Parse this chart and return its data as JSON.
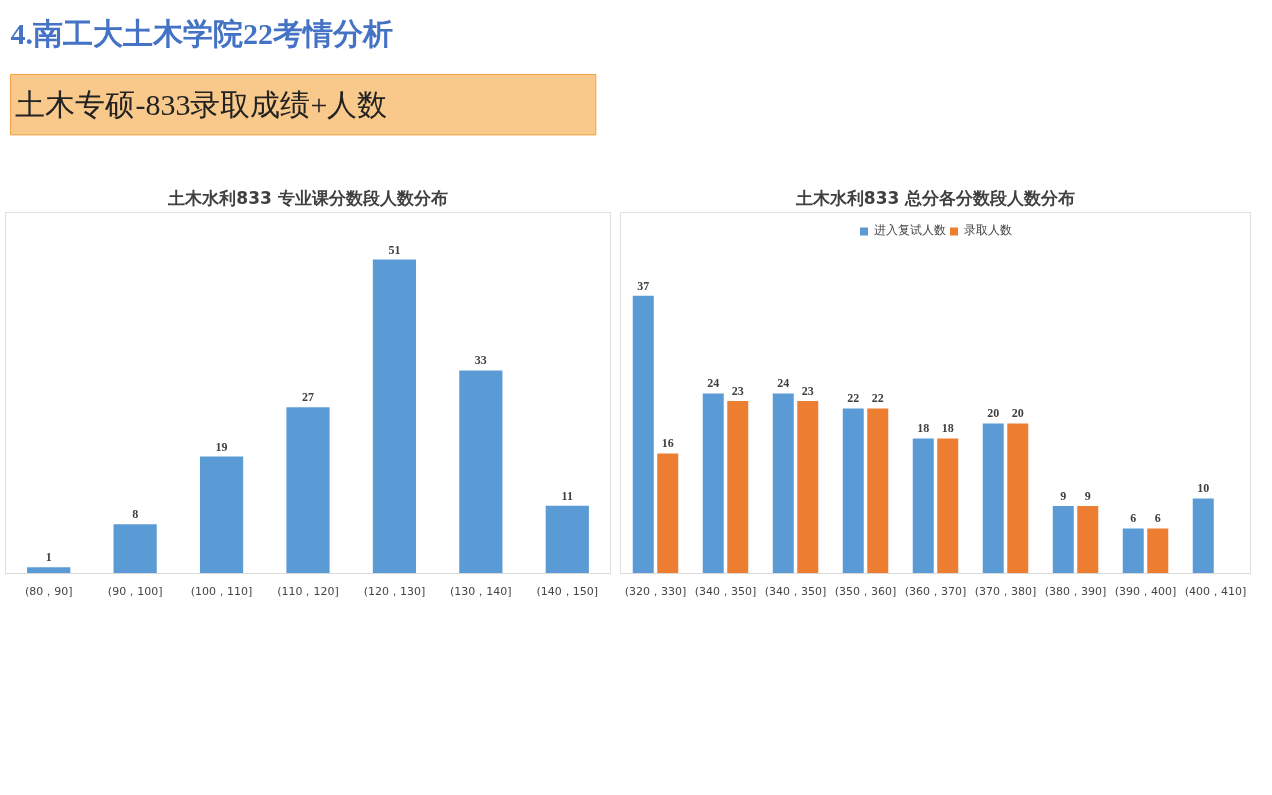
{
  "chart_data": [
    {
      "type": "bar",
      "title": "土木水利833 专业课分数段人数分布",
      "annotations": [
        "4.南工大土木学院22考情分析",
        "土木专硕-833录取成绩+人数"
      ],
      "categories": [
        "(80，90]",
        "(90，100]",
        "(100，110]",
        "(110，120]",
        "(120，130]",
        "(130，140]",
        "(140，150]"
      ],
      "values": [
        1,
        8,
        19,
        27,
        51,
        33,
        11
      ],
      "color": "#5b9bd5",
      "data_labels": true,
      "grid": false,
      "legend": false
    },
    {
      "type": "bar",
      "title": "土木水利833 总分各分数段人数分布",
      "categories": [
        "(320，330]",
        "(340，350]",
        "(340，350]",
        "(350，360]",
        "(360，370]",
        "(370，380]",
        "(380，390]",
        "(390，400]",
        "(400，410]"
      ],
      "series": [
        {
          "name": "进入复试人数",
          "color": "#5b9bd5",
          "values": [
            37,
            24,
            24,
            22,
            18,
            20,
            9,
            6,
            10
          ]
        },
        {
          "name": "录取人数",
          "color": "#ed7d31",
          "values": [
            16,
            23,
            23,
            22,
            18,
            20,
            9,
            6,
            null
          ]
        }
      ],
      "data_labels": true,
      "grid": false,
      "legend": "top"
    }
  ]
}
